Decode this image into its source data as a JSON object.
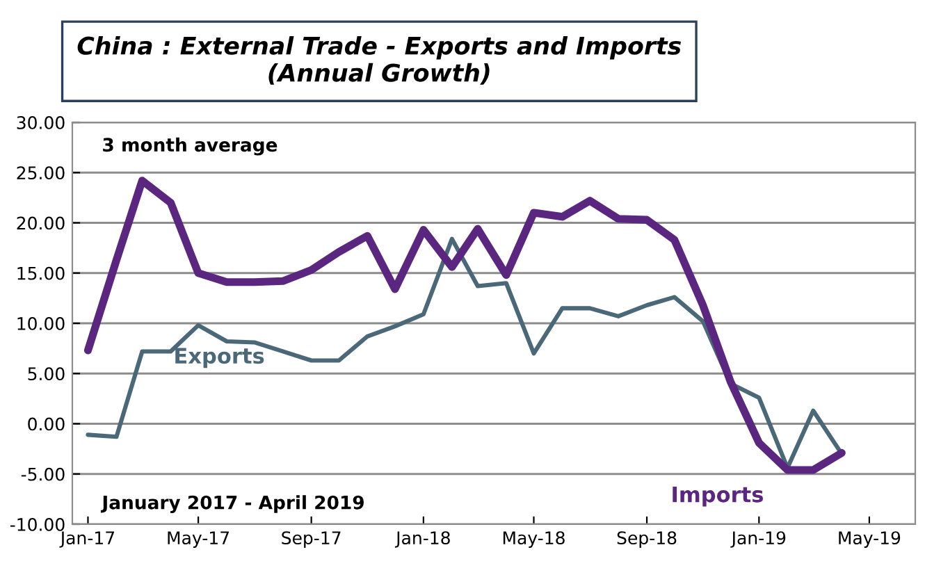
{
  "chart_data": {
    "type": "line",
    "title": "China : External Trade - Exports and Imports\n(Annual Growth)",
    "x": [
      "2017-01",
      "2017-02",
      "2017-03",
      "2017-04",
      "2017-05",
      "2017-06",
      "2017-07",
      "2017-08",
      "2017-09",
      "2017-10",
      "2017-11",
      "2017-12",
      "2018-01",
      "2018-02",
      "2018-03",
      "2018-04",
      "2018-05",
      "2018-06",
      "2018-07",
      "2018-08",
      "2018-09",
      "2018-10",
      "2018-11",
      "2018-12",
      "2019-01",
      "2019-02",
      "2019-03",
      "2019-04"
    ],
    "series": [
      {
        "name": "Imports",
        "color": "#5a2680",
        "values": [
          7.3,
          16.3,
          24.2,
          22.0,
          15.0,
          14.1,
          14.1,
          14.2,
          15.3,
          17.1,
          18.7,
          13.4,
          19.3,
          15.6,
          19.4,
          14.8,
          21.0,
          20.6,
          22.2,
          20.4,
          20.3,
          18.3,
          11.8,
          4.2,
          -1.9,
          -4.6,
          -4.6,
          -2.9
        ]
      },
      {
        "name": "Exports",
        "color": "#4a6878",
        "values": [
          -1.1,
          -1.3,
          7.2,
          7.2,
          9.8,
          8.2,
          8.1,
          7.2,
          6.3,
          6.3,
          8.7,
          9.7,
          10.9,
          18.4,
          13.7,
          14.0,
          7.0,
          11.5,
          11.5,
          10.7,
          11.8,
          12.6,
          10.2,
          4.0,
          2.6,
          -4.4,
          1.3,
          -3.0
        ]
      }
    ],
    "xlim": [
      "2016-12-15",
      "2019-06-20"
    ],
    "xticks": [
      {
        "value": "2017-01-01",
        "label": "Jan-17"
      },
      {
        "value": "2017-05-01",
        "label": "May-17"
      },
      {
        "value": "2017-09-01",
        "label": "Sep-17"
      },
      {
        "value": "2018-01-01",
        "label": "Jan-18"
      },
      {
        "value": "2018-05-01",
        "label": "May-18"
      },
      {
        "value": "2018-09-01",
        "label": "Sep-18"
      },
      {
        "value": "2019-01-01",
        "label": "Jan-19"
      },
      {
        "value": "2019-05-01",
        "label": "May-19"
      }
    ],
    "ylim": [
      -10,
      30
    ],
    "yticks": [
      {
        "value": -10,
        "label": "-10.00"
      },
      {
        "value": -5,
        "label": "-5.00"
      },
      {
        "value": 0,
        "label": "0.00"
      },
      {
        "value": 5,
        "label": "5.00"
      },
      {
        "value": 10,
        "label": "10.00"
      },
      {
        "value": 15,
        "label": "15.00"
      },
      {
        "value": 20,
        "label": "20.00"
      },
      {
        "value": 25,
        "label": "25.00"
      },
      {
        "value": 30,
        "label": "30.00"
      }
    ],
    "grid": "y",
    "legend": false,
    "annotations": [
      "3 month average",
      "January 2017 - April 2019"
    ]
  }
}
